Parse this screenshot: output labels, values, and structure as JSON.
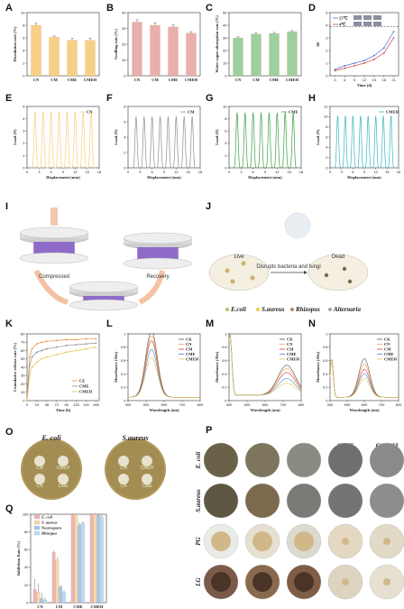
{
  "panel_letters": [
    "A",
    "B",
    "C",
    "D",
    "E",
    "F",
    "G",
    "H",
    "I",
    "J",
    "K",
    "L",
    "M",
    "N",
    "O",
    "P",
    "Q"
  ],
  "colors": {
    "CN": "#f5cf7e",
    "CM": "#8f8f8f",
    "CME": "#3ca03c",
    "CMEH": "#37b7c3",
    "barA": "#f7cf87",
    "barB": "#e9aeae",
    "barC": "#9ecf9e",
    "d25": "#4a6fd6",
    "d4": "#d24848"
  },
  "chart_data": [
    {
      "panel": "A",
      "type": "bar",
      "categories": [
        "CN",
        "CM",
        "CME",
        "CMEH"
      ],
      "values": [
        8.0,
        6.1,
        5.6,
        5.6
      ],
      "errors": [
        0.3,
        0.2,
        0.3,
        0.3
      ],
      "ylabel": "Dissolution rate (%)",
      "ylim": [
        0,
        10
      ],
      "yticks": [
        0,
        2,
        4,
        6,
        8,
        10
      ]
    },
    {
      "panel": "B",
      "type": "bar",
      "categories": [
        "CN",
        "CM",
        "CME",
        "CMEH"
      ],
      "values": [
        34,
        32,
        31,
        27
      ],
      "errors": [
        1.5,
        1.5,
        1.2,
        1.0
      ],
      "ylabel": "Swelling rate (%)",
      "ylim": [
        0,
        40
      ],
      "yticks": [
        0,
        10,
        20,
        30,
        40
      ]
    },
    {
      "panel": "C",
      "type": "bar",
      "categories": [
        "CN",
        "CM",
        "CME",
        "CMEH"
      ],
      "values": [
        30,
        33,
        33.5,
        35
      ],
      "errors": [
        0.8,
        0.8,
        0.8,
        0.8
      ],
      "ylabel": "Water vapor absorption rate (%)",
      "ylim": [
        0,
        50
      ],
      "yticks": [
        0,
        10,
        20,
        30,
        40,
        50
      ]
    },
    {
      "panel": "D",
      "type": "line",
      "x": [
        3,
        6,
        9,
        12,
        15,
        18,
        21
      ],
      "series": [
        {
          "name": "25℃",
          "values": [
            0.5,
            0.8,
            1.0,
            1.2,
            1.6,
            2.2,
            3.5
          ]
        },
        {
          "name": "4℃",
          "values": [
            0.4,
            0.6,
            0.8,
            1.0,
            1.3,
            1.8,
            3.0
          ]
        }
      ],
      "xlabel": "Time (d)",
      "ylabel": "ΔE",
      "xticks": [
        3,
        6,
        9,
        12,
        15,
        18,
        21
      ],
      "ylim": [
        0,
        5
      ],
      "yticks": [
        0,
        1,
        2,
        3,
        4,
        5
      ],
      "threshold": 3.9
    },
    {
      "panel": "E",
      "type": "line",
      "series": [
        {
          "name": "CN",
          "peak": 4.6
        }
      ],
      "xlabel": "Displacement (mm)",
      "ylabel": "Load (N)",
      "xticks": [
        0,
        3,
        6,
        9,
        12,
        15,
        18
      ],
      "ylim": [
        0,
        5
      ],
      "yticks": [
        0,
        1,
        2,
        3,
        4,
        5
      ],
      "cycles": 8
    },
    {
      "panel": "F",
      "type": "line",
      "series": [
        {
          "name": "CM",
          "peak": 6.7
        }
      ],
      "xlabel": "Displacement (mm)",
      "ylabel": "Load (N)",
      "xticks": [
        0,
        3,
        6,
        9,
        12,
        15,
        18
      ],
      "ylim": [
        0,
        8
      ],
      "yticks": [
        0,
        2,
        4,
        6,
        8
      ],
      "cycles": 8
    },
    {
      "panel": "G",
      "type": "line",
      "series": [
        {
          "name": "CME",
          "peak": 9.0
        }
      ],
      "xlabel": "Displacement (mm)",
      "ylabel": "Load (N)",
      "xticks": [
        0,
        3,
        6,
        9,
        12,
        15,
        18
      ],
      "ylim": [
        0,
        10
      ],
      "yticks": [
        0,
        2,
        4,
        6,
        8,
        10
      ],
      "cycles": 8
    },
    {
      "panel": "H",
      "type": "line",
      "series": [
        {
          "name": "CMEH",
          "peak": 10.2
        }
      ],
      "xlabel": "Displacement (mm)",
      "ylabel": "Load (N)",
      "xticks": [
        0,
        3,
        6,
        9,
        12,
        15,
        18
      ],
      "ylim": [
        0,
        12
      ],
      "yticks": [
        0,
        2,
        4,
        6,
        8,
        10,
        12
      ],
      "cycles": 8
    },
    {
      "panel": "K",
      "type": "line",
      "x": [
        0,
        6,
        12,
        24,
        36,
        48,
        72,
        96,
        120,
        144,
        168
      ],
      "series": [
        {
          "name": "CE",
          "values": [
            0,
            52,
            62,
            68,
            70,
            71,
            72,
            73,
            73,
            74,
            74
          ]
        },
        {
          "name": "CME",
          "values": [
            0,
            42,
            52,
            58,
            60,
            62,
            64,
            66,
            67,
            68,
            69
          ]
        },
        {
          "name": "CMEH",
          "values": [
            0,
            30,
            40,
            46,
            50,
            52,
            55,
            58,
            60,
            62,
            64
          ]
        }
      ],
      "xlabel": "Time (h)",
      "ylabel": "Cumulative release rate (%)",
      "xticks": [
        0,
        24,
        48,
        72,
        96,
        120,
        144,
        168
      ],
      "ylim": [
        0,
        80
      ],
      "yticks": [
        0,
        10,
        20,
        30,
        40,
        50,
        60,
        70,
        80
      ]
    },
    {
      "panel": "L",
      "type": "line",
      "x": [
        400,
        500,
        600,
        700,
        800
      ],
      "series": [
        {
          "name": "CK",
          "peak": 1.0
        },
        {
          "name": "CN",
          "peak": 0.92
        },
        {
          "name": "CM",
          "peak": 0.85
        },
        {
          "name": "CME",
          "peak": 0.72
        },
        {
          "name": "CMEH",
          "peak": 0.6
        }
      ],
      "xlabel": "Wavelength (nm)",
      "ylabel": "Absorbance (Abs)",
      "xticks": [
        400,
        500,
        600,
        700,
        800
      ],
      "ylim": [
        0,
        1.0
      ],
      "yticks": [
        0,
        0.2,
        0.4,
        0.6,
        0.8,
        1.0
      ]
    },
    {
      "panel": "M",
      "type": "line",
      "x": [
        400,
        500,
        600,
        700,
        800
      ],
      "series": [
        {
          "name": "CK",
          "peak": 0.45
        },
        {
          "name": "CN",
          "peak": 0.4
        },
        {
          "name": "CM",
          "peak": 0.34
        },
        {
          "name": "CME",
          "peak": 0.25
        },
        {
          "name": "CMEH",
          "peak": 0.18
        }
      ],
      "xlabel": "Wavelength (nm)",
      "ylabel": "Absorbance (Abs)",
      "xticks": [
        400,
        500,
        600,
        700,
        800
      ],
      "ylim": [
        0,
        1.0
      ],
      "yticks": [
        0,
        0.2,
        0.4,
        0.6,
        0.8,
        1.0
      ]
    },
    {
      "panel": "N",
      "type": "line",
      "x": [
        400,
        500,
        600,
        700,
        800
      ],
      "series": [
        {
          "name": "CK",
          "peak": 0.58
        },
        {
          "name": "CN",
          "peak": 0.5
        },
        {
          "name": "CM",
          "peak": 0.42
        },
        {
          "name": "CME",
          "peak": 0.35
        },
        {
          "name": "CMEH",
          "peak": 0.28
        }
      ],
      "xlabel": "Wavelength (nm)",
      "ylabel": "Absorbance (Abs)",
      "xticks": [
        400,
        500,
        600,
        700,
        800
      ],
      "ylim": [
        0,
        1.0
      ],
      "yticks": [
        0,
        0.2,
        0.4,
        0.6,
        0.8,
        1.0
      ]
    },
    {
      "panel": "Q",
      "type": "bar",
      "categories": [
        "CN",
        "CM",
        "CME",
        "CMEH"
      ],
      "series": [
        {
          "name": "E. coli",
          "values": [
            15,
            57,
            100,
            100
          ],
          "errors": [
            12,
            2,
            1,
            1
          ]
        },
        {
          "name": "S. aureus",
          "values": [
            12,
            48,
            100,
            100
          ],
          "errors": [
            10,
            3,
            1,
            1
          ]
        },
        {
          "name": "Neurospora",
          "values": [
            5,
            18,
            88,
            99
          ],
          "errors": [
            6,
            2,
            3,
            1
          ]
        },
        {
          "name": "Rhizopus",
          "values": [
            3,
            12,
            90,
            97
          ],
          "errors": [
            3,
            2,
            2,
            2
          ]
        }
      ],
      "ylabel": "Inhibition Rate (%)",
      "ylim": [
        0,
        100
      ],
      "yticks": [
        0,
        20,
        40,
        60,
        80,
        100
      ]
    }
  ],
  "schematic_I": {
    "compressed": "Compressed",
    "recovery": "Recovery"
  },
  "schematic_J": {
    "live": "Live",
    "dead": "Dead",
    "action": "Disrupts bacteria and fungi",
    "legend": [
      "E.coli",
      "S.aureus",
      "Rhizopus",
      "Alternaria"
    ]
  },
  "panel_O": {
    "titles": [
      "E. coli",
      "S.aureus"
    ],
    "wells": [
      "CM",
      "CMEH",
      "CN",
      "CME"
    ]
  },
  "panel_P": {
    "cols": [
      "CK",
      "CN",
      "CM",
      "CME",
      "CMEH"
    ],
    "rows": [
      "E. coli",
      "S.aureus",
      "PG",
      "LG"
    ]
  }
}
